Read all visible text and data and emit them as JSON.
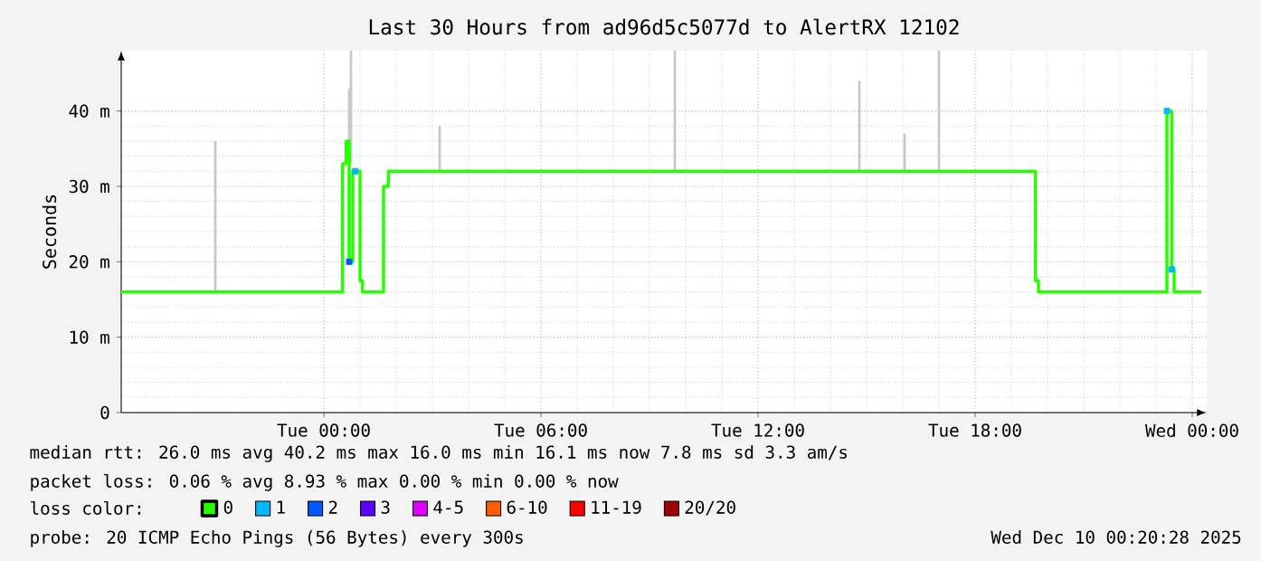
{
  "chart_data": {
    "type": "step",
    "title": "Last 30 Hours from ad96d5c5077d to AlertRX 12102",
    "ylabel": "Seconds",
    "legend_title": "loss color:",
    "legend": "bottom",
    "grid": true,
    "xlim": [
      "2025-12-08T18:24",
      "2025-12-10T00:24"
    ],
    "xticks": [
      {
        "value": "2025-12-09T00:00",
        "label": "Tue 00:00"
      },
      {
        "value": "2025-12-09T06:00",
        "label": "Tue 06:00"
      },
      {
        "value": "2025-12-09T12:00",
        "label": "Tue 12:00"
      },
      {
        "value": "2025-12-09T18:00",
        "label": "Tue 18:00"
      },
      {
        "value": "2025-12-10T00:00",
        "label": "Wed 00:00"
      }
    ],
    "ylim": [
      0,
      48
    ],
    "yticks": [
      {
        "value": 0,
        "label": "0"
      },
      {
        "value": 10,
        "label": "10 m"
      },
      {
        "value": 20,
        "label": "20 m"
      },
      {
        "value": 30,
        "label": "30 m"
      },
      {
        "value": 40,
        "label": "40 m"
      }
    ],
    "series": [
      {
        "type": "bar",
        "color": "#c8c8c8",
        "x": [
          "2025-12-08T21:00",
          "2025-12-09T00:42",
          "2025-12-09T00:45",
          "2025-12-09T03:12",
          "2025-12-09T09:42",
          "2025-12-09T14:48",
          "2025-12-09T16:03",
          "2025-12-09T17:00"
        ],
        "base": [
          16,
          20,
          33,
          32,
          32,
          32,
          32,
          32
        ],
        "values": [
          20,
          23,
          15,
          6,
          16,
          12,
          5,
          16
        ]
      },
      {
        "name": "0",
        "color": "#26ff00",
        "x": [
          "2025-12-08T18:24",
          "2025-12-09T00:31",
          "2025-12-09T00:37",
          "2025-12-09T00:42",
          "2025-12-09T00:48",
          "2025-12-09T01:00",
          "2025-12-09T01:04",
          "2025-12-09T01:39",
          "2025-12-09T01:47",
          "2025-12-09T19:40",
          "2025-12-09T19:45",
          "2025-12-09T23:18",
          "2025-12-09T23:26",
          "2025-12-09T23:30",
          "2025-12-10T00:15"
        ],
        "values": [
          16,
          33,
          36,
          20,
          32,
          17.5,
          16,
          30,
          32,
          17.5,
          16,
          40,
          19,
          16,
          16
        ]
      },
      {
        "type": "scatter",
        "name": "1",
        "color": "#00b8ff",
        "marker": "square",
        "x": [
          "2025-12-09T00:52",
          "2025-12-09T23:18",
          "2025-12-09T23:26"
        ],
        "values": [
          32,
          40,
          19
        ]
      },
      {
        "type": "scatter",
        "name": "2",
        "color": "#0059ff",
        "marker": "square",
        "x": [
          "2025-12-09T00:42"
        ],
        "values": [
          20
        ]
      },
      {
        "type": "scatter",
        "name": "3",
        "color": "#5e00ff",
        "marker": "square"
      },
      {
        "type": "scatter",
        "name": "4-5",
        "color": "#dd00ff",
        "marker": "square"
      },
      {
        "type": "scatter",
        "name": "6-10",
        "color": "#ff5e00",
        "marker": "square"
      },
      {
        "type": "scatter",
        "name": "11-19",
        "color": "#ff0000",
        "marker": "square"
      },
      {
        "type": "scatter",
        "name": "20/20",
        "color": "#a10000",
        "marker": "square"
      }
    ],
    "annotations": [
      "median rtt:  26.0 ms avg  40.2 ms max  16.0 ms min  16.1 ms now  7.8 ms sd  3.3   am/s",
      "packet loss: 0.06 % avg  8.93 % max  0.00 % min  0.00 % now",
      "probe:        20 ICMP Echo Pings (56 Bytes) every 300s",
      "Wed Dec 10 00:20:28 2025"
    ]
  }
}
